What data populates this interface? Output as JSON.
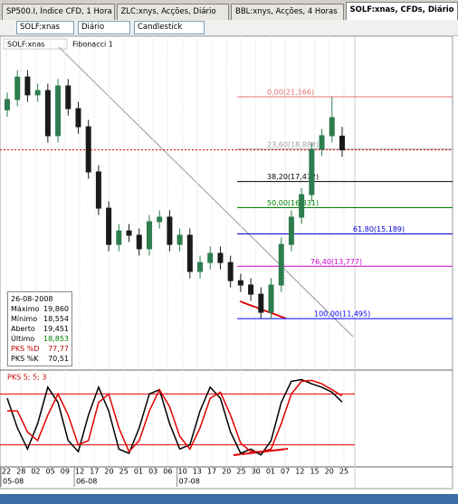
{
  "tabs": [
    "SP500.I, Índice CFD, 1 Hora",
    "ZLC:xnys, Acções, Diário",
    "BBL:xnys, Acções, 4 Horas",
    "SOLF:xnas, CFDs, Diário"
  ],
  "toolbar": {
    "symbol": "SOLF:xnas",
    "period": "Diário",
    "style": "Candlestick",
    "study": "Fibonacci 1"
  },
  "info": {
    "date": "26-08-2008",
    "rows": [
      [
        "Máximo",
        "19,860"
      ],
      [
        "Mínimo",
        "18,554"
      ],
      [
        "Aberto",
        "19,451"
      ],
      [
        "Último",
        "18,853"
      ]
    ],
    "pks_d": "77,77",
    "pks_k": "70,51"
  },
  "chart_data": {
    "type": "candlestick",
    "ylim": [
      9.29,
      23.73
    ],
    "up_color": "#2e7d4f",
    "down_color": "#1a1a1a",
    "open": [
      20.6,
      21.05,
      22.03,
      21.25,
      21.44,
      19.47,
      21.64,
      20.65,
      19.86,
      17.89,
      16.31,
      14.73,
      15.32,
      15.13,
      14.54,
      15.72,
      15.92,
      14.73,
      15.13,
      13.55,
      13.94,
      14.34,
      13.94,
      13.15,
      12.96,
      12.56,
      11.77,
      12.96,
      14.73,
      15.92,
      16.9,
      18.88,
      19.47,
      19.451
    ],
    "high": [
      21.35,
      22.33,
      22.33,
      21.74,
      21.74,
      21.94,
      21.94,
      20.95,
      20.16,
      18.19,
      16.61,
      15.62,
      15.62,
      15.43,
      16.02,
      16.22,
      16.22,
      15.43,
      15.43,
      14.24,
      14.64,
      14.64,
      14.24,
      13.45,
      13.26,
      12.86,
      13.26,
      15.03,
      16.22,
      17.2,
      19.18,
      19.77,
      21.166,
      19.86
    ],
    "low": [
      20.3,
      20.75,
      20.95,
      20.95,
      19.17,
      19.17,
      20.35,
      19.56,
      17.59,
      16.01,
      14.43,
      14.43,
      14.83,
      14.24,
      14.24,
      15.42,
      14.43,
      14.43,
      13.25,
      13.25,
      13.64,
      13.64,
      12.85,
      12.66,
      12.26,
      11.495,
      11.47,
      12.66,
      14.43,
      15.62,
      16.6,
      18.58,
      19.17,
      18.554
    ],
    "close": [
      21.05,
      22.03,
      21.25,
      21.44,
      19.47,
      21.64,
      20.65,
      19.86,
      17.89,
      16.31,
      14.73,
      15.32,
      15.13,
      14.54,
      15.72,
      15.92,
      14.73,
      15.13,
      13.55,
      13.94,
      14.34,
      13.94,
      13.15,
      12.96,
      12.56,
      11.77,
      12.96,
      14.73,
      15.92,
      16.9,
      18.88,
      19.47,
      20.26,
      18.853
    ],
    "fib": [
      {
        "label": "0,00(21,166)",
        "value": 21.166,
        "color": "#e07070"
      },
      {
        "label": "23,60(18,884)",
        "value": 18.884,
        "color": "#a0a0a0"
      },
      {
        "label": "38,20(17,472)",
        "value": 17.472,
        "color": "#000000"
      },
      {
        "label": "50,00(16,331)",
        "value": 16.331,
        "color": "#008000"
      },
      {
        "label": "61,80(15,189)",
        "value": 15.189,
        "color": "#0000cc"
      },
      {
        "label": "76,40(13,777)",
        "value": 13.777,
        "color": "#cc00cc"
      },
      {
        "label": "100,00(11,495)",
        "value": 11.495,
        "color": "#0000ff"
      }
    ],
    "x_labels": [
      "22",
      "28",
      "02",
      "05",
      "09",
      "12",
      "17",
      "20",
      "25",
      "01",
      "03",
      "06",
      "10",
      "13",
      "17",
      "20",
      "25",
      "30",
      "01",
      "07",
      "12",
      "15",
      "20",
      "25"
    ],
    "months": [
      "05-08",
      "06-08",
      "07-08"
    ],
    "oscillator": {
      "title": "PKS 5; 5; 3",
      "ylim": [
        -5,
        105
      ],
      "levels": [
        20,
        80
      ],
      "level_color": "#e00000",
      "series": [
        {
          "name": "PKS %K",
          "color": "#000000",
          "values": [
            75,
            40,
            15,
            45,
            88,
            70,
            25,
            12,
            55,
            88,
            60,
            15,
            10,
            40,
            80,
            85,
            45,
            15,
            20,
            60,
            88,
            75,
            35,
            10,
            15,
            8,
            25,
            70,
            95,
            97,
            92,
            88,
            82,
            70.51
          ]
        },
        {
          "name": "PKS %D",
          "color": "#e00000",
          "values": [
            60,
            60,
            35,
            25,
            55,
            80,
            55,
            20,
            25,
            70,
            80,
            40,
            12,
            25,
            60,
            85,
            65,
            30,
            15,
            40,
            75,
            82,
            55,
            22,
            12,
            12,
            15,
            45,
            80,
            95,
            96,
            92,
            85,
            77.77
          ]
        }
      ]
    }
  }
}
